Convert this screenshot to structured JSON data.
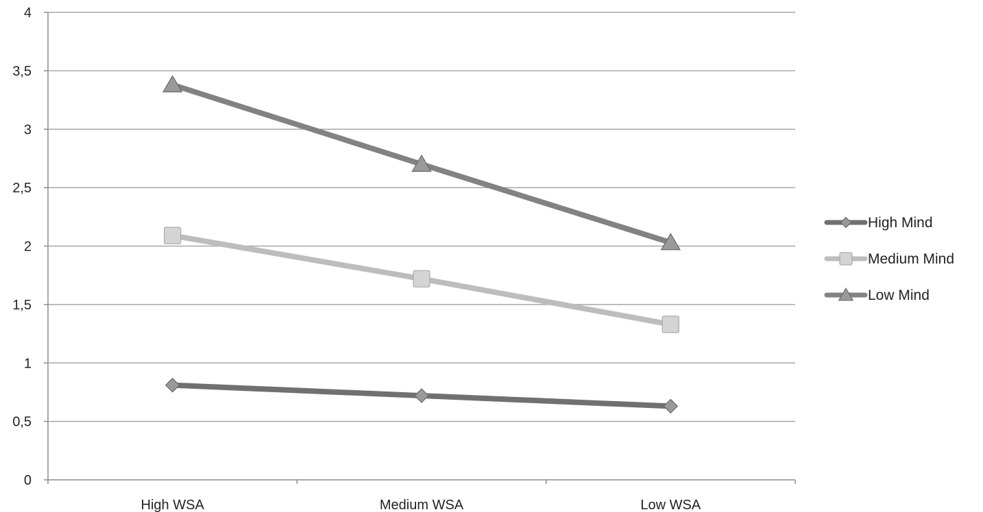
{
  "chart_data": {
    "type": "line",
    "title": "",
    "xlabel": "",
    "ylabel": "",
    "categories": [
      "High WSA",
      "Medium WSA",
      "Low WSA"
    ],
    "ylim": [
      0,
      4
    ],
    "ytick_step": 0.5,
    "ytick_labels": [
      "0",
      "0,5",
      "1",
      "1,5",
      "2",
      "2,5",
      "3",
      "3,5",
      "4"
    ],
    "grid": true,
    "legend_position": "right",
    "series": [
      {
        "name": "High Mind",
        "values": [
          0.81,
          0.72,
          0.63
        ],
        "color": "#707070",
        "marker": "diamond"
      },
      {
        "name": "Medium Mind",
        "values": [
          2.09,
          1.72,
          1.33
        ],
        "color": "#bdbdbd",
        "marker": "square"
      },
      {
        "name": "Low Mind",
        "values": [
          3.38,
          2.7,
          2.03
        ],
        "color": "#828282",
        "marker": "triangle"
      }
    ]
  }
}
